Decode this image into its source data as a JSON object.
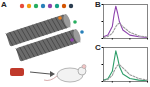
{
  "diagram": {
    "label": "A"
  },
  "chart_data": [
    {
      "type": "line",
      "label": "B",
      "x": [
        450,
        475,
        500,
        510,
        520,
        530,
        540,
        560,
        600,
        650,
        700
      ],
      "series": [
        {
          "color": "#8e44ad",
          "line_style": "solid",
          "values": [
            0.05,
            0.1,
            0.35,
            0.7,
            0.95,
            0.75,
            0.5,
            0.25,
            0.1,
            0.05,
            0.03
          ]
        },
        {
          "color": "#9a9a9a",
          "line_style": "dashed",
          "values": [
            0.03,
            0.06,
            0.15,
            0.25,
            0.35,
            0.42,
            0.45,
            0.35,
            0.18,
            0.08,
            0.04
          ]
        }
      ],
      "xlim": [
        450,
        700
      ],
      "ylim": [
        0,
        1
      ],
      "xticks": [
        500,
        600,
        700
      ],
      "yticks": [
        0,
        0.5,
        1
      ],
      "tick_labels": false
    },
    {
      "type": "line",
      "label": "C",
      "x": [
        450,
        475,
        500,
        510,
        520,
        530,
        540,
        560,
        600,
        650,
        700
      ],
      "series": [
        {
          "color": "#2e9e6a",
          "line_style": "solid",
          "values": [
            0.04,
            0.08,
            0.3,
            0.6,
            0.9,
            0.7,
            0.45,
            0.22,
            0.09,
            0.04,
            0.02
          ]
        },
        {
          "color": "#9a9a9a",
          "line_style": "dashed",
          "values": [
            0.03,
            0.06,
            0.18,
            0.3,
            0.4,
            0.48,
            0.5,
            0.4,
            0.2,
            0.09,
            0.04
          ]
        }
      ],
      "xlim": [
        450,
        700
      ],
      "ylim": [
        0,
        1
      ],
      "xticks": [
        500,
        600,
        700
      ],
      "yticks": [
        0,
        0.5,
        1
      ],
      "tick_labels": false
    }
  ]
}
